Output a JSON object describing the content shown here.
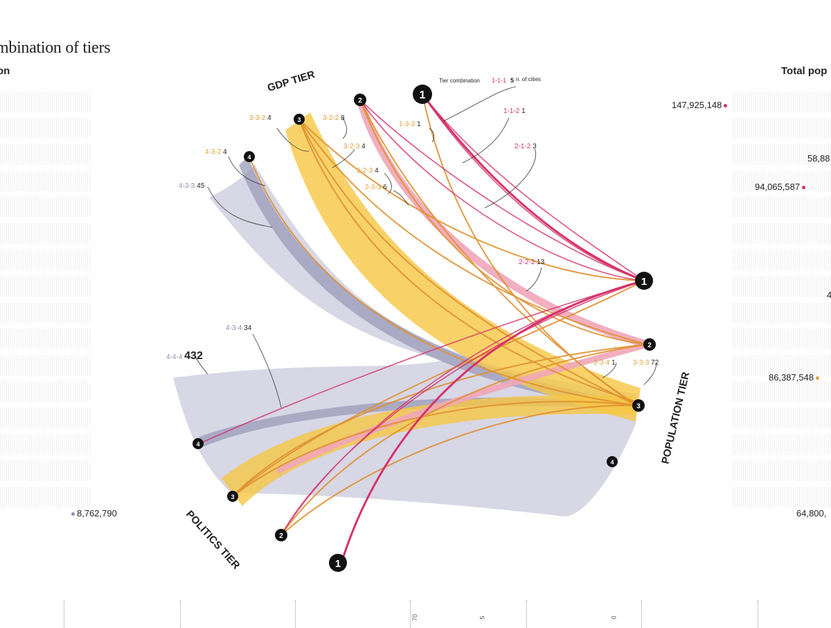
{
  "header": {
    "title": "mbination of tiers",
    "left_col": "on",
    "right_col": "Total pop"
  },
  "axis_titles": {
    "gdp": "GDP TIER",
    "population": "POPULATION TIER",
    "politics": "POLITICS TIER"
  },
  "legend": {
    "prefix": "Tier combination",
    "combo": "1-1-1",
    "count": "5",
    "suffix": "n. of cities"
  },
  "nodes": {
    "gdp": [
      "1",
      "2",
      "3",
      "4"
    ],
    "population": [
      "1",
      "2",
      "3",
      "4"
    ],
    "politics": [
      "1",
      "2",
      "3",
      "4"
    ]
  },
  "combos": [
    {
      "code": "1-3-3",
      "count": "1",
      "color": "#e0a03a"
    },
    {
      "code": "1-1-2",
      "count": "1",
      "color": "#d6336c"
    },
    {
      "code": "2-1-2",
      "count": "3",
      "color": "#d6336c"
    },
    {
      "code": "3-3-2",
      "count": "4",
      "color": "#e0a03a"
    },
    {
      "code": "3-2-2",
      "count": "8",
      "color": "#e0a03a"
    },
    {
      "code": "3-2-3",
      "count": "4",
      "color": "#e0a03a"
    },
    {
      "code": "2-2-3",
      "count": "4",
      "color": "#e0a03a"
    },
    {
      "code": "2-3-3",
      "count": "6",
      "color": "#e0a03a"
    },
    {
      "code": "4-3-2",
      "count": "4",
      "color": "#e0a03a"
    },
    {
      "code": "4-3-3",
      "count": "45",
      "color": "#8f8fb0"
    },
    {
      "code": "2-2-2",
      "count": "13",
      "color": "#d6336c"
    },
    {
      "code": "4-3-4",
      "count": "34",
      "color": "#8f8fb0"
    },
    {
      "code": "4-4-4",
      "count": "432",
      "color": "#8f8fb0"
    },
    {
      "code": "3-3-4",
      "count": "1",
      "color": "#e0a03a"
    },
    {
      "code": "3-3-3",
      "count": "72",
      "color": "#e0a03a"
    }
  ],
  "left_values": [
    {
      "text": "8,762,790",
      "color": "#8f8fb0"
    }
  ],
  "right_values": [
    {
      "text": "147,925,148",
      "color": "#d6336c"
    },
    {
      "text": "58,88",
      "color": ""
    },
    {
      "text": "94,065,587",
      "color": "#d6336c"
    },
    {
      "text": "4",
      "color": ""
    },
    {
      "text": "86,387,548",
      "color": "#e0a03a"
    },
    {
      "text": "64,800,",
      "color": ""
    }
  ],
  "bottom_ticks": [
    "70",
    "5",
    "0"
  ],
  "colors": {
    "pink": "#d6336c",
    "pink_light": "#f0a6b8",
    "orange": "#e0a03a",
    "yellow": "#f6c744",
    "lavender": "#c9c9dc",
    "purple": "#8f8fb0",
    "node": "#111111"
  }
}
